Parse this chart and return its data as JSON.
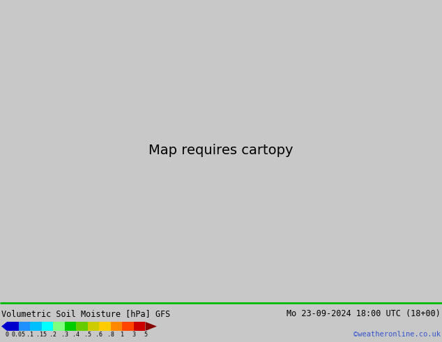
{
  "title_left": "Volumetric Soil Moisture [hPa] GFS",
  "title_right": "Mo 23-09-2024 18:00 UTC (18+00)",
  "credit": "©weatheronline.co.uk",
  "colorbar_labels": [
    "0",
    "0.05",
    ".1",
    ".15",
    ".2",
    ".3",
    ".4",
    ".5",
    ".6",
    ".8",
    "1",
    "3",
    "5"
  ],
  "colorbar_colors": [
    "#0000cd",
    "#1e90ff",
    "#00bfff",
    "#00ffff",
    "#7fff7f",
    "#00cc00",
    "#66cc00",
    "#cccc00",
    "#ffcc00",
    "#ff8800",
    "#ff4400",
    "#cc0000",
    "#880000"
  ],
  "background_color": "#c8c8c8",
  "sea_color": "#c8c8c8",
  "land_bg": "#f0f0f0",
  "map_extent": [
    3,
    35,
    54,
    72
  ],
  "figure_width": 6.34,
  "figure_height": 4.9,
  "dpi": 100,
  "moisture_grid_lon": [],
  "moisture_grid_lat": [],
  "moisture_values": []
}
